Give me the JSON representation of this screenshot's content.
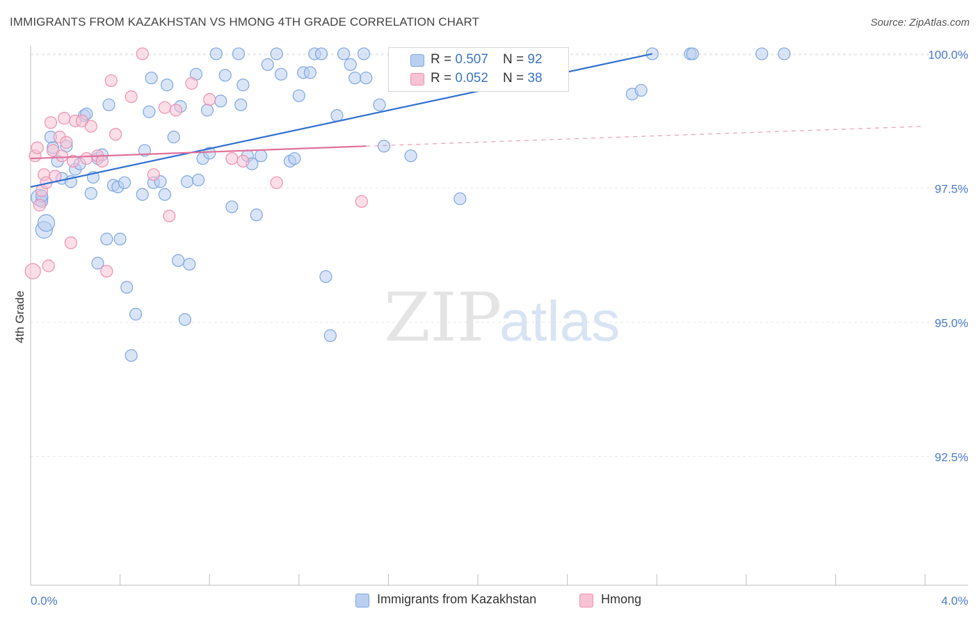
{
  "header": {
    "title": "IMMIGRANTS FROM KAZAKHSTAN VS HMONG 4TH GRADE CORRELATION CHART",
    "source": "Source: ZipAtlas.com"
  },
  "watermark": {
    "part1": "ZIP",
    "part2": "atlas"
  },
  "legend": {
    "rows": [
      {
        "r_label": "R = ",
        "r_value": "0.507",
        "n_label": "N = ",
        "n_value": "92",
        "color": "#a8c4ec"
      },
      {
        "r_label": "R = ",
        "r_value": "0.052",
        "n_label": "N = ",
        "n_value": "38",
        "color": "#f4b6cb"
      }
    ]
  },
  "bottom_legend": [
    {
      "label": "Immigrants from Kazakhstan",
      "color": "#b9d0f1"
    },
    {
      "label": "Hmong",
      "color": "#f7c3d4"
    }
  ],
  "chart_data": {
    "type": "scatter",
    "title": "IMMIGRANTS FROM KAZAKHSTAN VS HMONG 4TH GRADE CORRELATION CHART",
    "xlabel": "",
    "ylabel": "4th Grade",
    "xlim": [
      0.0,
      4.0
    ],
    "ylim": [
      90.1,
      100.2
    ],
    "x_tick_labels": [
      "0.0%",
      "4.0%"
    ],
    "y_ticks": [
      92.5,
      95.0,
      97.5,
      100.0
    ],
    "y_tick_labels": [
      "92.5%",
      "95.0%",
      "97.5%",
      "100.0%"
    ],
    "grid": true,
    "legend_position": "top-center",
    "series": [
      {
        "name": "Immigrants from Kazakhstan",
        "color": "#7ea6e0",
        "fill": "#b9d0f1",
        "r": 0.507,
        "n": 92,
        "trend": {
          "x": [
            0.0,
            2.78
          ],
          "y": [
            97.52,
            100.0
          ],
          "style": "solid",
          "color": "#2f6fd0"
        },
        "points": [
          [
            0.04,
            97.32
          ],
          [
            0.05,
            97.25
          ],
          [
            0.05,
            97.35
          ],
          [
            0.06,
            96.72
          ],
          [
            0.07,
            96.85
          ],
          [
            0.09,
            98.45
          ],
          [
            0.1,
            98.25
          ],
          [
            0.12,
            98.0
          ],
          [
            0.14,
            97.68
          ],
          [
            0.16,
            98.28
          ],
          [
            0.18,
            97.62
          ],
          [
            0.2,
            97.85
          ],
          [
            0.22,
            97.95
          ],
          [
            0.24,
            98.85
          ],
          [
            0.25,
            98.88
          ],
          [
            0.27,
            97.4
          ],
          [
            0.28,
            97.7
          ],
          [
            0.3,
            98.05
          ],
          [
            0.32,
            98.12
          ],
          [
            0.34,
            96.55
          ],
          [
            0.35,
            99.05
          ],
          [
            0.37,
            97.55
          ],
          [
            0.39,
            97.52
          ],
          [
            0.4,
            96.55
          ],
          [
            0.42,
            97.6
          ],
          [
            0.43,
            95.65
          ],
          [
            0.45,
            94.38
          ],
          [
            0.47,
            95.15
          ],
          [
            0.5,
            97.38
          ],
          [
            0.51,
            98.2
          ],
          [
            0.53,
            98.92
          ],
          [
            0.54,
            99.55
          ],
          [
            0.55,
            97.6
          ],
          [
            0.58,
            97.62
          ],
          [
            0.6,
            97.38
          ],
          [
            0.61,
            99.42
          ],
          [
            0.64,
            98.45
          ],
          [
            0.66,
            96.15
          ],
          [
            0.67,
            99.02
          ],
          [
            0.69,
            95.05
          ],
          [
            0.7,
            97.62
          ],
          [
            0.71,
            96.08
          ],
          [
            0.74,
            99.62
          ],
          [
            0.75,
            97.65
          ],
          [
            0.77,
            98.05
          ],
          [
            0.79,
            98.95
          ],
          [
            0.8,
            98.15
          ],
          [
            0.83,
            100.0
          ],
          [
            0.85,
            99.12
          ],
          [
            0.87,
            99.6
          ],
          [
            0.9,
            97.15
          ],
          [
            0.93,
            100.0
          ],
          [
            0.94,
            99.05
          ],
          [
            0.95,
            99.42
          ],
          [
            0.97,
            98.1
          ],
          [
            0.99,
            97.95
          ],
          [
            1.01,
            97.0
          ],
          [
            1.03,
            98.1
          ],
          [
            1.06,
            99.8
          ],
          [
            1.1,
            100.0
          ],
          [
            1.12,
            99.62
          ],
          [
            1.16,
            98.0
          ],
          [
            1.18,
            98.05
          ],
          [
            1.2,
            99.22
          ],
          [
            1.22,
            99.65
          ],
          [
            1.25,
            99.65
          ],
          [
            1.27,
            100.0
          ],
          [
            1.3,
            100.0
          ],
          [
            1.32,
            95.85
          ],
          [
            1.34,
            94.75
          ],
          [
            1.37,
            98.85
          ],
          [
            1.4,
            100.0
          ],
          [
            1.43,
            99.8
          ],
          [
            1.45,
            99.55
          ],
          [
            1.49,
            100.0
          ],
          [
            1.5,
            99.55
          ],
          [
            1.56,
            99.05
          ],
          [
            1.58,
            98.28
          ],
          [
            1.7,
            98.1
          ],
          [
            1.72,
            99.9
          ],
          [
            1.92,
            97.3
          ],
          [
            2.14,
            100.0
          ],
          [
            2.69,
            99.25
          ],
          [
            2.73,
            99.32
          ],
          [
            2.78,
            100.0
          ],
          [
            2.95,
            100.0
          ],
          [
            2.96,
            100.0
          ],
          [
            3.27,
            100.0
          ],
          [
            3.37,
            100.0
          ],
          [
            2.0,
            99.95
          ],
          [
            2.1,
            99.8
          ],
          [
            0.3,
            96.1
          ]
        ]
      },
      {
        "name": "Hmong",
        "color": "#ee8fb0",
        "fill": "#f7c3d4",
        "r": 0.052,
        "n": 38,
        "trend": {
          "x": [
            0.0,
            1.5
          ],
          "y": [
            98.05,
            98.28
          ],
          "style": "solid",
          "color": "#e0709a",
          "extend_to": [
            4.0,
            98.65
          ],
          "extend_style": "dashed"
        },
        "points": [
          [
            0.01,
            95.95
          ],
          [
            0.02,
            98.1
          ],
          [
            0.03,
            98.25
          ],
          [
            0.04,
            97.18
          ],
          [
            0.05,
            97.45
          ],
          [
            0.06,
            97.75
          ],
          [
            0.07,
            97.6
          ],
          [
            0.08,
            96.05
          ],
          [
            0.09,
            98.72
          ],
          [
            0.1,
            98.2
          ],
          [
            0.11,
            97.72
          ],
          [
            0.13,
            98.45
          ],
          [
            0.14,
            98.1
          ],
          [
            0.15,
            98.8
          ],
          [
            0.16,
            98.35
          ],
          [
            0.18,
            96.48
          ],
          [
            0.19,
            98.0
          ],
          [
            0.2,
            98.75
          ],
          [
            0.23,
            98.75
          ],
          [
            0.25,
            98.05
          ],
          [
            0.27,
            98.65
          ],
          [
            0.3,
            98.1
          ],
          [
            0.32,
            98.0
          ],
          [
            0.34,
            95.95
          ],
          [
            0.36,
            99.5
          ],
          [
            0.38,
            98.5
          ],
          [
            0.45,
            99.2
          ],
          [
            0.5,
            100.0
          ],
          [
            0.55,
            97.75
          ],
          [
            0.6,
            99.0
          ],
          [
            0.62,
            96.98
          ],
          [
            0.65,
            98.95
          ],
          [
            0.72,
            99.45
          ],
          [
            0.8,
            99.15
          ],
          [
            0.9,
            98.05
          ],
          [
            0.95,
            98.0
          ],
          [
            1.1,
            97.6
          ],
          [
            1.48,
            97.25
          ]
        ]
      }
    ]
  }
}
